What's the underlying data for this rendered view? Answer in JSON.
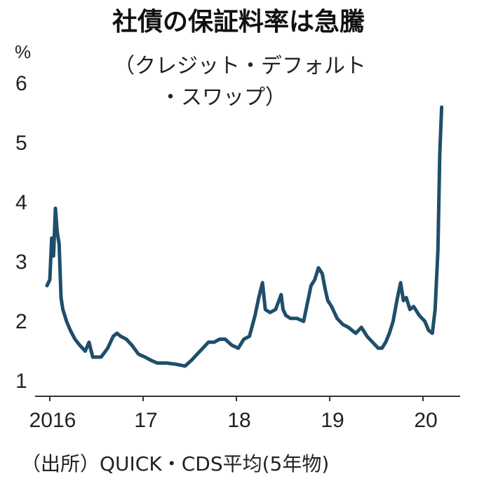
{
  "chart_data": {
    "type": "line",
    "title": "社債の保証料率は急騰",
    "subtitle_line1": "（クレジット・デフォルト",
    "subtitle_line2": "・スワップ）",
    "ylabel": "%",
    "source": "（出所）QUICK・CDS平均(5年物)",
    "ylim": [
      1,
      6
    ],
    "yticks": [
      "1",
      "2",
      "3",
      "4",
      "5",
      "6"
    ],
    "xlim": [
      2016.0,
      2020.35
    ],
    "xticks": [
      {
        "value": 2016,
        "label": "2016"
      },
      {
        "value": 2017,
        "label": "17"
      },
      {
        "value": 2018,
        "label": "18"
      },
      {
        "value": 2019,
        "label": "19"
      },
      {
        "value": 2020,
        "label": "20"
      }
    ],
    "grid": false,
    "line_color": "#1f4e6b",
    "series": [
      {
        "x": [
          2015.97,
          2016.0,
          2016.02,
          2016.04,
          2016.06,
          2016.08,
          2016.1,
          2016.12,
          2016.14,
          2016.16,
          2016.18,
          2016.22,
          2016.27,
          2016.32,
          2016.38,
          2016.42,
          2016.46,
          2016.5,
          2016.55,
          2016.62,
          2016.68,
          2016.72,
          2016.76,
          2016.82,
          2016.88,
          2016.95,
          2017.02,
          2017.08,
          2017.15,
          2017.25,
          2017.35,
          2017.45,
          2017.52,
          2017.58,
          2017.64,
          2017.7,
          2017.76,
          2017.82,
          2017.88,
          2017.95,
          2018.02,
          2018.08,
          2018.14,
          2018.2,
          2018.24,
          2018.28,
          2018.31,
          2018.36,
          2018.42,
          2018.48,
          2018.5,
          2018.53,
          2018.58,
          2018.65,
          2018.72,
          2018.76,
          2018.8,
          2018.84,
          2018.88,
          2018.92,
          2018.95,
          2018.98,
          2019.02,
          2019.08,
          2019.14,
          2019.2,
          2019.28,
          2019.34,
          2019.4,
          2019.46,
          2019.52,
          2019.56,
          2019.6,
          2019.64,
          2019.68,
          2019.72,
          2019.76,
          2019.79,
          2019.82,
          2019.86,
          2019.9,
          2019.96,
          2020.02,
          2020.06,
          2020.1,
          2020.13,
          2020.16,
          2020.18,
          2020.2
        ],
        "y": [
          2.6,
          2.7,
          3.4,
          3.1,
          3.9,
          3.5,
          3.3,
          2.4,
          2.2,
          2.1,
          2.0,
          1.85,
          1.7,
          1.6,
          1.5,
          1.65,
          1.4,
          1.4,
          1.4,
          1.55,
          1.75,
          1.8,
          1.75,
          1.7,
          1.6,
          1.45,
          1.4,
          1.35,
          1.3,
          1.3,
          1.28,
          1.25,
          1.35,
          1.45,
          1.55,
          1.65,
          1.65,
          1.7,
          1.7,
          1.6,
          1.55,
          1.7,
          1.75,
          2.1,
          2.4,
          2.65,
          2.2,
          2.15,
          2.2,
          2.45,
          2.2,
          2.1,
          2.05,
          2.05,
          2.0,
          2.3,
          2.6,
          2.7,
          2.9,
          2.8,
          2.55,
          2.35,
          2.25,
          2.05,
          1.95,
          1.9,
          1.8,
          1.9,
          1.75,
          1.65,
          1.55,
          1.55,
          1.65,
          1.8,
          2.0,
          2.35,
          2.65,
          2.35,
          2.4,
          2.2,
          2.25,
          2.1,
          2.0,
          1.85,
          1.8,
          2.2,
          3.2,
          4.8,
          5.6
        ]
      }
    ]
  }
}
